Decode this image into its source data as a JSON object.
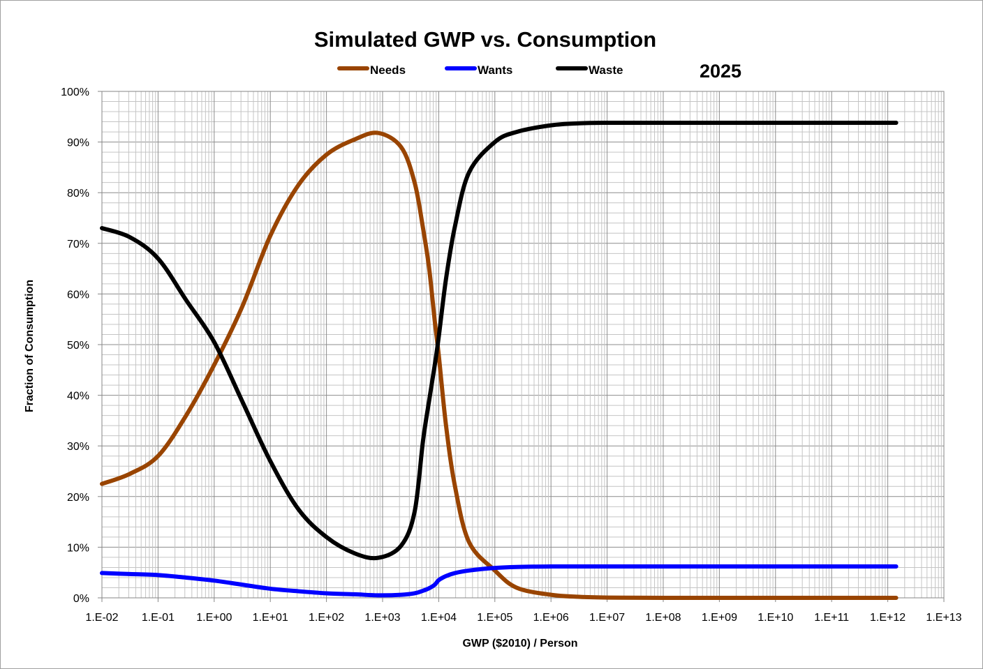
{
  "chart_data": {
    "type": "line",
    "title": "Simulated GWP vs. Consumption",
    "annotation": "2025",
    "xlabel": "GWP ($2010) / Person",
    "ylabel": "Fraction of Consumption",
    "x_scale": "log",
    "xlim": [
      0.01,
      10000000000000.0
    ],
    "ylim": [
      0,
      100
    ],
    "y_unit": "%",
    "grid": true,
    "legend_position": "top",
    "x_tick_labels": [
      "1.E-02",
      "1.E-01",
      "1.E+00",
      "1.E+01",
      "1.E+02",
      "1.E+03",
      "1.E+04",
      "1.E+05",
      "1.E+06",
      "1.E+07",
      "1.E+08",
      "1.E+09",
      "1.E+10",
      "1.E+11",
      "1.E+12",
      "1.E+13"
    ],
    "y_tick_labels": [
      "0%",
      "10%",
      "20%",
      "30%",
      "40%",
      "50%",
      "60%",
      "70%",
      "80%",
      "90%",
      "100%"
    ],
    "x": [
      0.01,
      0.0316,
      0.1,
      0.316,
      1,
      3.16,
      10,
      31.6,
      100,
      316,
      832,
      2140,
      3720,
      5250,
      6760,
      8510,
      10000,
      13500,
      19500,
      34700,
      100000,
      245000,
      1000000.0,
      3160000.0,
      10000000.0,
      100000000.0,
      1000000000.0,
      10000000000.0,
      100000000000.0,
      1000000000000.0,
      1410000000000.0
    ],
    "series": [
      {
        "name": "Needs",
        "color": "#994400",
        "values": [
          22.5,
          24.5,
          28,
          36,
          46,
          57.5,
          71.5,
          81.5,
          87.5,
          90.5,
          91.8,
          89,
          82,
          73,
          65,
          54.6,
          48,
          34,
          22,
          11,
          5.4,
          2,
          0.6,
          0.2,
          0.05,
          0,
          0,
          0,
          0,
          0,
          0
        ]
      },
      {
        "name": "Wants",
        "color": "#0000ff",
        "values": [
          4.9,
          4.7,
          4.5,
          4.0,
          3.4,
          2.6,
          1.8,
          1.3,
          0.9,
          0.7,
          0.5,
          0.6,
          0.9,
          1.4,
          1.9,
          2.6,
          3.5,
          4.3,
          4.9,
          5.4,
          5.9,
          6.1,
          6.2,
          6.2,
          6.2,
          6.2,
          6.2,
          6.2,
          6.2,
          6.2,
          6.2
        ]
      },
      {
        "name": "Waste",
        "color": "#000000",
        "values": [
          73,
          71.2,
          67,
          58.8,
          50.5,
          38.8,
          27,
          17.5,
          12,
          8.8,
          7.9,
          10.3,
          17,
          31,
          39,
          46,
          51.5,
          63,
          73.4,
          84,
          90,
          92,
          93.3,
          93.7,
          93.8,
          93.8,
          93.8,
          93.8,
          93.8,
          93.8,
          93.8
        ]
      }
    ]
  }
}
